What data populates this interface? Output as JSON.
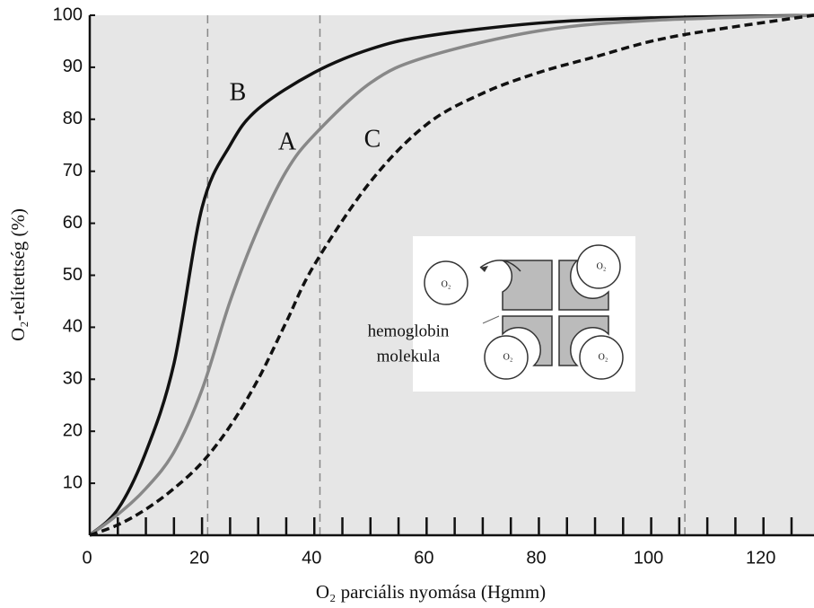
{
  "chart_data": {
    "type": "line",
    "xlabel": "O₂ parciális nyomása (Hgmm)",
    "ylabel": "O₂-telítettség (%)",
    "xlim": [
      0,
      129
    ],
    "ylim": [
      0,
      100
    ],
    "xticks": [
      0,
      20,
      40,
      60,
      80,
      100,
      120
    ],
    "xticks_minor": [
      5,
      10,
      15,
      20,
      25,
      30,
      35,
      40,
      45,
      50,
      55,
      60,
      65,
      70,
      75,
      80,
      85,
      90,
      95,
      100,
      105,
      110,
      115,
      120,
      125
    ],
    "yticks": [
      10,
      20,
      30,
      40,
      50,
      60,
      70,
      80,
      90,
      100
    ],
    "reference_lines": [
      21,
      41,
      106
    ],
    "background": "#e6e6e6",
    "series": [
      {
        "name": "B",
        "color": "#111111",
        "dashed": false,
        "x": [
          0,
          5,
          10,
          15,
          20,
          25,
          30,
          40,
          50,
          60,
          80,
          100,
          129
        ],
        "values": [
          0,
          5,
          16,
          33,
          63,
          75,
          82,
          89,
          93.5,
          96,
          98.5,
          99.5,
          100
        ]
      },
      {
        "name": "A",
        "color": "#888888",
        "dashed": false,
        "x": [
          0,
          5,
          10,
          15,
          20,
          25,
          30,
          35,
          40,
          50,
          60,
          80,
          100,
          129
        ],
        "values": [
          0,
          4,
          9,
          16,
          28,
          45,
          59,
          70,
          77,
          87,
          92,
          97,
          99,
          100
        ]
      },
      {
        "name": "C",
        "color": "#111111",
        "dashed": true,
        "x": [
          0,
          5,
          10,
          15,
          20,
          25,
          30,
          35,
          40,
          50,
          60,
          70,
          80,
          90,
          100,
          110,
          129
        ],
        "values": [
          0,
          2,
          5,
          9,
          14,
          21,
          30,
          41,
          52,
          68,
          79,
          85,
          89,
          92,
          95,
          97,
          100
        ]
      }
    ],
    "inset": {
      "label_lines": [
        "hemoglobin",
        "molekula"
      ],
      "o2_labels": [
        "O₂",
        "O₂",
        "O₂",
        "O₂"
      ]
    }
  }
}
